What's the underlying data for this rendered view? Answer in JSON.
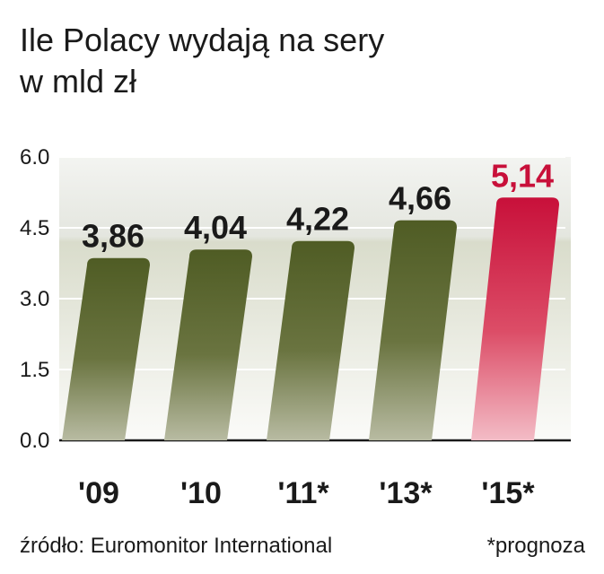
{
  "chart_data": {
    "type": "bar",
    "title": "Ile Polacy wydają na sery",
    "subtitle": "w mld zł",
    "categories": [
      "'09",
      "'10",
      "'11*",
      "'13*",
      "'15*"
    ],
    "values": [
      3.86,
      4.04,
      4.22,
      4.66,
      5.14
    ],
    "value_labels": [
      "3,86",
      "4,04",
      "4,22",
      "4,66",
      "5,14"
    ],
    "highlight_index": 4,
    "y_ticks": [
      "0.0",
      "1.5",
      "3.0",
      "4.5",
      "6.0"
    ],
    "ylim": [
      0,
      6.0
    ],
    "xlabel": "",
    "ylabel": "",
    "colors": {
      "bar": "#56632a",
      "bar_highlight": "#c8103a",
      "label": "#1a1a1a",
      "label_highlight": "#c8103a"
    }
  },
  "footer": {
    "source": "źródło: Euromonitor International",
    "note": "*prognoza"
  }
}
